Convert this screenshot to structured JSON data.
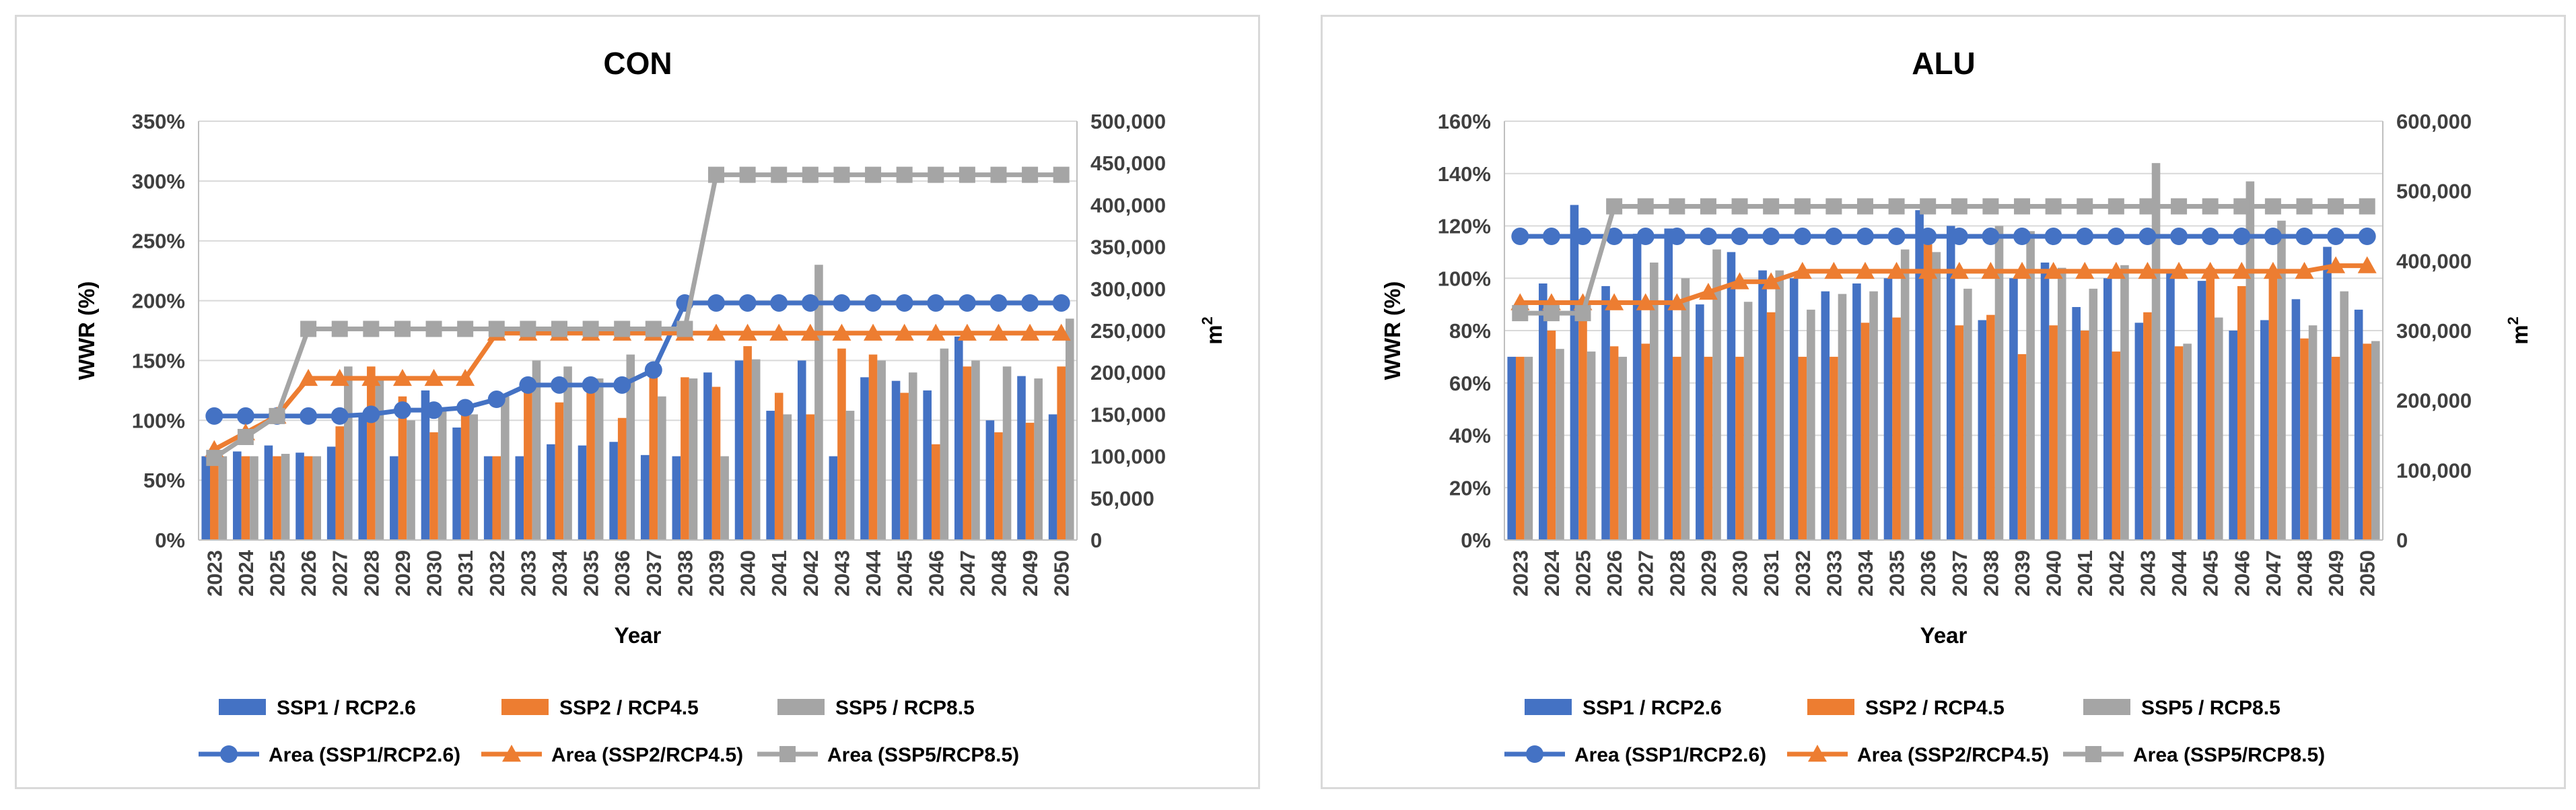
{
  "chart_data": [
    {
      "type": "bar",
      "title": "CON",
      "xlabel": "Year",
      "ylabel": "WWR (%)",
      "y2label_base": "m",
      "y2label_sup": "2",
      "ylim": [
        0,
        350
      ],
      "yticks": [
        "0%",
        "50%",
        "100%",
        "150%",
        "200%",
        "250%",
        "300%",
        "350%"
      ],
      "y2lim": [
        0,
        500000
      ],
      "y2ticks": [
        "0",
        "50,000",
        "100,000",
        "150,000",
        "200,000",
        "250,000",
        "300,000",
        "350,000",
        "400,000",
        "450,000",
        "500,000"
      ],
      "grid": true,
      "legend_position": "bottom",
      "categories": [
        "2023",
        "2024",
        "2025",
        "2026",
        "2027",
        "2028",
        "2029",
        "2030",
        "2031",
        "2032",
        "2033",
        "2034",
        "2035",
        "2036",
        "2037",
        "2038",
        "2039",
        "2040",
        "2041",
        "2042",
        "2043",
        "2044",
        "2045",
        "2046",
        "2047",
        "2048",
        "2049",
        "2050"
      ],
      "series": [
        {
          "name": "SSP1 / RCP2.6",
          "kind": "bar",
          "axis": "left",
          "color": "#4472C4",
          "values": [
            70,
            74,
            79,
            73,
            78,
            103,
            70,
            125,
            94,
            70,
            70,
            80,
            79,
            82,
            71,
            70,
            140,
            150,
            108,
            150,
            70,
            136,
            133,
            125,
            170,
            100,
            137,
            105
          ]
        },
        {
          "name": "SSP2 / RCP4.5",
          "kind": "bar",
          "axis": "left",
          "color": "#ED7D31",
          "values": [
            72,
            70,
            70,
            70,
            95,
            145,
            120,
            90,
            116,
            70,
            128,
            115,
            130,
            102,
            136,
            136,
            128,
            162,
            123,
            105,
            160,
            155,
            123,
            80,
            145,
            90,
            98,
            145
          ]
        },
        {
          "name": "SSP5 / RCP8.5",
          "kind": "bar",
          "axis": "left",
          "color": "#A5A5A5",
          "values": [
            70,
            70,
            72,
            70,
            145,
            135,
            100,
            110,
            105,
            120,
            150,
            145,
            135,
            155,
            120,
            135,
            70,
            151,
            105,
            230,
            108,
            150,
            140,
            160,
            150,
            145,
            135,
            185
          ]
        },
        {
          "name": "Area (SSP1/RCP2.6)",
          "kind": "line",
          "axis": "right",
          "color": "#4472C4",
          "marker": "circle",
          "values": [
            148000,
            148000,
            148000,
            148000,
            148000,
            150000,
            155000,
            155000,
            158000,
            168000,
            185000,
            185000,
            185000,
            185000,
            203000,
            283000,
            283000,
            283000,
            283000,
            283000,
            283000,
            283000,
            283000,
            283000,
            283000,
            283000,
            283000,
            283000
          ]
        },
        {
          "name": "Area (SSP2/RCP4.5)",
          "kind": "line",
          "axis": "right",
          "color": "#ED7D31",
          "marker": "triangle",
          "values": [
            108000,
            128000,
            148000,
            193000,
            193000,
            193000,
            193000,
            193000,
            193000,
            247000,
            247000,
            247000,
            247000,
            247000,
            247000,
            247000,
            247000,
            247000,
            247000,
            247000,
            247000,
            247000,
            247000,
            247000,
            247000,
            247000,
            247000,
            247000
          ]
        },
        {
          "name": "Area (SSP5/RCP8.5)",
          "kind": "line",
          "axis": "right",
          "color": "#A5A5A5",
          "marker": "square",
          "values": [
            98000,
            123000,
            148000,
            252000,
            252000,
            252000,
            252000,
            252000,
            252000,
            252000,
            252000,
            252000,
            252000,
            252000,
            252000,
            252000,
            436000,
            436000,
            436000,
            436000,
            436000,
            436000,
            436000,
            436000,
            436000,
            436000,
            436000,
            436000
          ]
        }
      ]
    },
    {
      "type": "bar",
      "title": "ALU",
      "xlabel": "Year",
      "ylabel": "WWR (%)",
      "y2label_base": "m",
      "y2label_sup": "2",
      "ylim": [
        0,
        160
      ],
      "yticks": [
        "0%",
        "20%",
        "40%",
        "60%",
        "80%",
        "100%",
        "120%",
        "140%",
        "160%"
      ],
      "y2lim": [
        0,
        600000
      ],
      "y2ticks": [
        "0",
        "100,000",
        "200,000",
        "300,000",
        "400,000",
        "500,000",
        "600,000"
      ],
      "grid": true,
      "legend_position": "bottom",
      "categories": [
        "2023",
        "2024",
        "2025",
        "2026",
        "2027",
        "2028",
        "2029",
        "2030",
        "2031",
        "2032",
        "2033",
        "2034",
        "2035",
        "2036",
        "2037",
        "2038",
        "2039",
        "2040",
        "2041",
        "2042",
        "2043",
        "2044",
        "2045",
        "2046",
        "2047",
        "2048",
        "2049",
        "2050"
      ],
      "series": [
        {
          "name": "SSP1 / RCP2.6",
          "kind": "bar",
          "axis": "left",
          "color": "#4472C4",
          "values": [
            70,
            98,
            128,
            97,
            117,
            119,
            90,
            110,
            103,
            100,
            95,
            98,
            100,
            126,
            120,
            84,
            100,
            106,
            89,
            100,
            83,
            102,
            99,
            80,
            84,
            92,
            112,
            88
          ]
        },
        {
          "name": "SSP2 / RCP4.5",
          "kind": "bar",
          "axis": "left",
          "color": "#ED7D31",
          "values": [
            70,
            80,
            92,
            74,
            75,
            70,
            70,
            70,
            87,
            70,
            70,
            83,
            85,
            113,
            82,
            86,
            71,
            82,
            80,
            72,
            87,
            74,
            104,
            97,
            103,
            77,
            70,
            75
          ]
        },
        {
          "name": "SSP5 / RCP8.5",
          "kind": "bar",
          "axis": "left",
          "color": "#A5A5A5",
          "values": [
            70,
            73,
            72,
            70,
            106,
            100,
            111,
            91,
            103,
            88,
            94,
            95,
            111,
            110,
            96,
            120,
            118,
            104,
            96,
            105,
            144,
            75,
            85,
            137,
            122,
            82,
            95,
            76
          ]
        },
        {
          "name": "Area (SSP1/RCP2.6)",
          "kind": "line",
          "axis": "right",
          "color": "#4472C4",
          "marker": "circle",
          "values": [
            435000,
            435000,
            435000,
            435000,
            435000,
            435000,
            435000,
            435000,
            435000,
            435000,
            435000,
            435000,
            435000,
            435000,
            435000,
            435000,
            435000,
            435000,
            435000,
            435000,
            435000,
            435000,
            435000,
            435000,
            435000,
            435000,
            435000,
            435000
          ]
        },
        {
          "name": "Area (SSP2/RCP4.5)",
          "kind": "line",
          "axis": "right",
          "color": "#ED7D31",
          "marker": "triangle",
          "values": [
            340000,
            340000,
            340000,
            340000,
            340000,
            340000,
            355000,
            370000,
            370000,
            385000,
            385000,
            385000,
            385000,
            385000,
            385000,
            385000,
            385000,
            385000,
            385000,
            385000,
            385000,
            385000,
            385000,
            385000,
            385000,
            385000,
            393000,
            393000
          ]
        },
        {
          "name": "Area (SSP5/RCP8.5)",
          "kind": "line",
          "axis": "right",
          "color": "#A5A5A5",
          "marker": "square",
          "values": [
            325000,
            325000,
            325000,
            478000,
            478000,
            478000,
            478000,
            478000,
            478000,
            478000,
            478000,
            478000,
            478000,
            478000,
            478000,
            478000,
            478000,
            478000,
            478000,
            478000,
            478000,
            478000,
            478000,
            478000,
            478000,
            478000,
            478000,
            478000
          ]
        }
      ]
    }
  ]
}
